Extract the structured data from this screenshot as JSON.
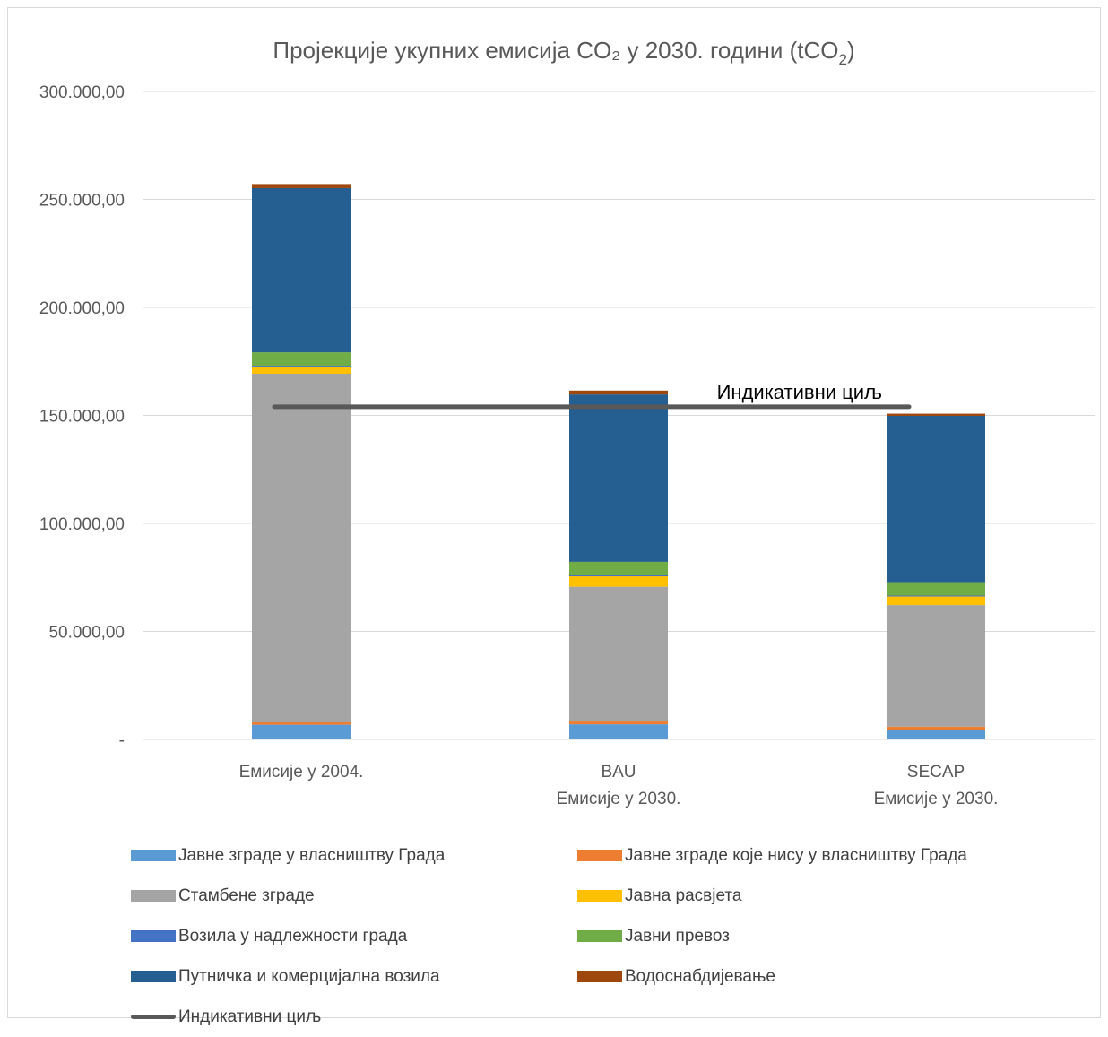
{
  "chart_data": {
    "type": "bar",
    "stacked": true,
    "title_main": "Пројекције укупних емисија CO₂ у 2030. години (tCO",
    "title_sub": "2",
    "title_end": ")",
    "categories": [
      [
        "Емисије у 2004."
      ],
      [
        "BAU",
        "Емисије у 2030."
      ],
      [
        "SECAP",
        "Емисије у 2030."
      ]
    ],
    "ylim": [
      0,
      300000
    ],
    "yticks": [
      {
        "value": 0,
        "label": "-"
      },
      {
        "value": 50000,
        "label": "50.000,00"
      },
      {
        "value": 100000,
        "label": "100.000,00"
      },
      {
        "value": 150000,
        "label": "150.000,00"
      },
      {
        "value": 200000,
        "label": "200.000,00"
      },
      {
        "value": 250000,
        "label": "250.000,00"
      },
      {
        "value": 300000,
        "label": "300.000,00"
      }
    ],
    "grid": true,
    "legend_position": "bottom",
    "series": [
      {
        "name": "Јавне зграде у власништву Града",
        "color": "#5B9BD5",
        "values": [
          6800,
          7000,
          4500
        ]
      },
      {
        "name": "Јавне зграде које нису у власништву Града",
        "color": "#ED7D31",
        "values": [
          1500,
          1700,
          1400
        ]
      },
      {
        "name": "Стамбене зграде",
        "color": "#A5A5A5",
        "values": [
          161000,
          62000,
          56300
        ]
      },
      {
        "name": "Јавна расвјета",
        "color": "#FFC000",
        "values": [
          3300,
          4800,
          4000
        ]
      },
      {
        "name": "Возила у надлежности града",
        "color": "#4472C4",
        "values": [
          400,
          500,
          400
        ]
      },
      {
        "name": "Јавни превоз",
        "color": "#70AD47",
        "values": [
          6200,
          6200,
          6200
        ]
      },
      {
        "name": "Путничка и комерцијална возила",
        "color": "#255E91",
        "values": [
          76000,
          77500,
          77000
        ]
      },
      {
        "name": "Водоснабдијевање",
        "color": "#9E480E",
        "values": [
          1900,
          1800,
          1000
        ]
      }
    ],
    "target": {
      "name": "Индикативни циљ",
      "value": 154000,
      "label": "Индикативни циљ",
      "color": "#595959"
    }
  }
}
